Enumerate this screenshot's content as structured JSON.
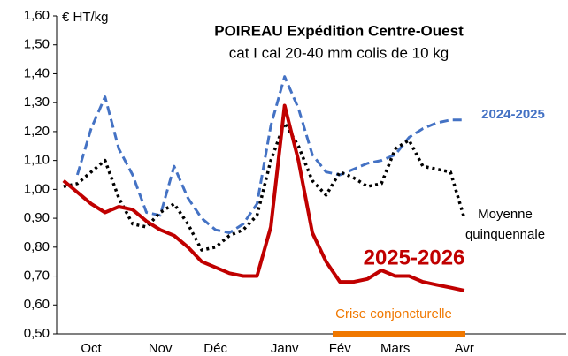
{
  "chart_data": {
    "type": "line",
    "title": "POIREAU Expédition Centre-Ouest",
    "subtitle": "cat I cal 20-40 mm colis de 10 kg",
    "y_label": "€ HT/kg",
    "annotation": "Crise conjoncturelle",
    "categories": [
      null,
      null,
      "Oct",
      null,
      null,
      null,
      null,
      "Nov",
      null,
      null,
      null,
      "Déc",
      null,
      null,
      null,
      null,
      "Janv",
      null,
      null,
      null,
      "Fév",
      null,
      null,
      null,
      "Mars",
      null,
      null,
      null,
      null,
      "Avr"
    ],
    "series": [
      {
        "name": "2024-2025",
        "color": "#4472c4",
        "style": "dashed",
        "values": [
          null,
          1.05,
          1.21,
          1.32,
          1.14,
          1.05,
          0.92,
          0.91,
          1.08,
          0.97,
          0.9,
          0.86,
          0.85,
          0.88,
          0.95,
          1.22,
          1.39,
          1.28,
          1.12,
          1.06,
          1.05,
          1.07,
          1.09,
          1.1,
          1.12,
          1.18,
          1.21,
          1.23,
          1.24,
          1.24
        ]
      },
      {
        "name": "Moyenne quinquennale",
        "color": "#000000",
        "style": "dotted",
        "values": [
          1.01,
          1.02,
          1.06,
          1.1,
          0.97,
          0.88,
          0.87,
          0.92,
          0.95,
          0.88,
          0.79,
          0.8,
          0.84,
          0.86,
          0.91,
          1.1,
          1.23,
          1.15,
          1.03,
          0.98,
          1.06,
          1.04,
          1.01,
          1.02,
          1.14,
          1.17,
          1.08,
          1.07,
          1.06,
          0.9
        ]
      },
      {
        "name": "2025-2026",
        "color": "#c00000",
        "style": "solid",
        "values": [
          1.03,
          0.99,
          0.95,
          0.92,
          0.94,
          0.93,
          0.89,
          0.86,
          0.84,
          0.8,
          0.75,
          0.73,
          0.71,
          0.7,
          0.7,
          0.87,
          1.29,
          1.1,
          0.85,
          0.75,
          0.68,
          0.68,
          0.69,
          0.72,
          0.7,
          0.7,
          0.68,
          0.67,
          0.66,
          0.65
        ]
      }
    ],
    "ylim": [
      0.5,
      1.6
    ],
    "yticks": [
      {
        "value": 0.5,
        "label": "0,50"
      },
      {
        "value": 0.6,
        "label": "0,60"
      },
      {
        "value": 0.7,
        "label": "0,70"
      },
      {
        "value": 0.8,
        "label": "0,80"
      },
      {
        "value": 0.9,
        "label": "0,90"
      },
      {
        "value": 1.0,
        "label": "1,00"
      },
      {
        "value": 1.1,
        "label": "1,10"
      },
      {
        "value": 1.2,
        "label": "1,20"
      },
      {
        "value": 1.3,
        "label": "1,30"
      },
      {
        "value": 1.4,
        "label": "1,40"
      },
      {
        "value": 1.5,
        "label": "1,50"
      },
      {
        "value": 1.6,
        "label": "1,60"
      }
    ],
    "grid": false
  }
}
